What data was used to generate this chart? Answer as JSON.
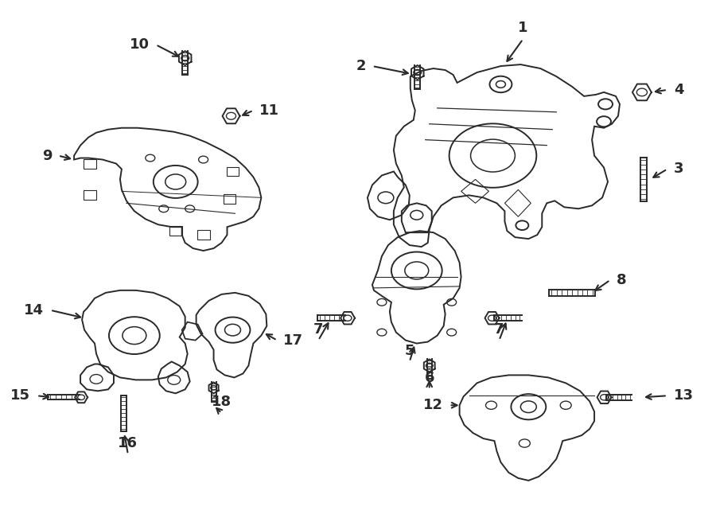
{
  "bg_color": "#ffffff",
  "line_color": "#2a2a2a",
  "line_width": 1.4,
  "fig_width": 9.0,
  "fig_height": 6.61,
  "dpi": 100
}
